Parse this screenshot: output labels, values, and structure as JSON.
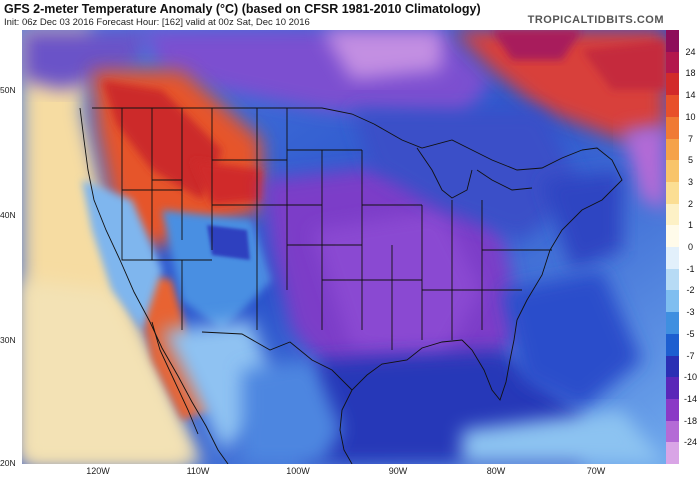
{
  "header": {
    "title": "GFS 2-meter Temperature Anomaly (°C) (based on CFSR 1981-2010 Climatology)",
    "subtitle": "Init: 06z Dec 03 2016   Forecast Hour: [162]   valid at 00z Sat, Dec 10 2016",
    "brand": "TROPICALTIDBITS.COM"
  },
  "latitude_labels": [
    "50N",
    "40N",
    "30N",
    "20N"
  ],
  "longitude_labels": [
    "120W",
    "110W",
    "100W",
    "90W",
    "80W",
    "70W"
  ],
  "colorbar": {
    "labels": [
      "24",
      "18",
      "14",
      "10",
      "7",
      "5",
      "3",
      "2",
      "1",
      "0",
      "-1",
      "-2",
      "-3",
      "-5",
      "-7",
      "-10",
      "-14",
      "-18",
      "-24"
    ],
    "colors": [
      "#8e0e5a",
      "#b3174d",
      "#d22a2a",
      "#e8502a",
      "#f07a34",
      "#f5a24a",
      "#f8c46a",
      "#fbde93",
      "#fdf1c6",
      "#fffbea",
      "#e2f0fb",
      "#b7dbf5",
      "#7fbef0",
      "#3f8fe0",
      "#1d5ed0",
      "#2a2fb4",
      "#5a27b8",
      "#8a3ac6",
      "#b46bd6",
      "#d9a5e6"
    ]
  },
  "map": {
    "ocean_warm": "#f7dc9e",
    "ocean_cold": "#2f63d3",
    "deep_cold": "#3a2fb0",
    "purple_cold": "#7a3fc8",
    "warm_west": "#e35a28",
    "hot_red": "#c21f2c",
    "outline": "#111111"
  }
}
